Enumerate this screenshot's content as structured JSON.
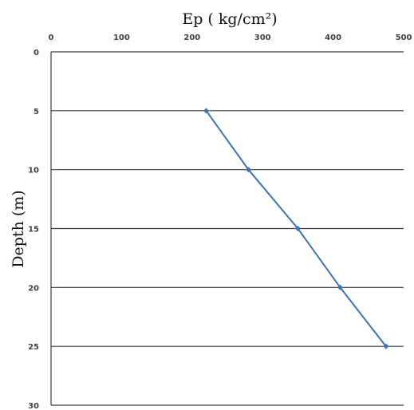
{
  "chart_data": {
    "type": "line",
    "title": "",
    "xlabel": "Ep ( kg/cm²)",
    "ylabel": "Depth (m)",
    "xlim": [
      0,
      500
    ],
    "ylim": [
      0,
      30
    ],
    "x_ticks": [
      "0",
      "100",
      "200",
      "300",
      "400",
      "500"
    ],
    "y_ticks": [
      "0",
      "5",
      "10",
      "15",
      "20",
      "25",
      "30"
    ],
    "x_axis_position": "top",
    "y_axis_inverted": true,
    "grid": "horizontal",
    "legend": "none",
    "series": [
      {
        "x": [
          220,
          280,
          350,
          410,
          475
        ],
        "y": [
          5,
          10,
          15,
          20,
          25
        ],
        "color": "#3a73b8",
        "marker": "diamond"
      }
    ]
  }
}
